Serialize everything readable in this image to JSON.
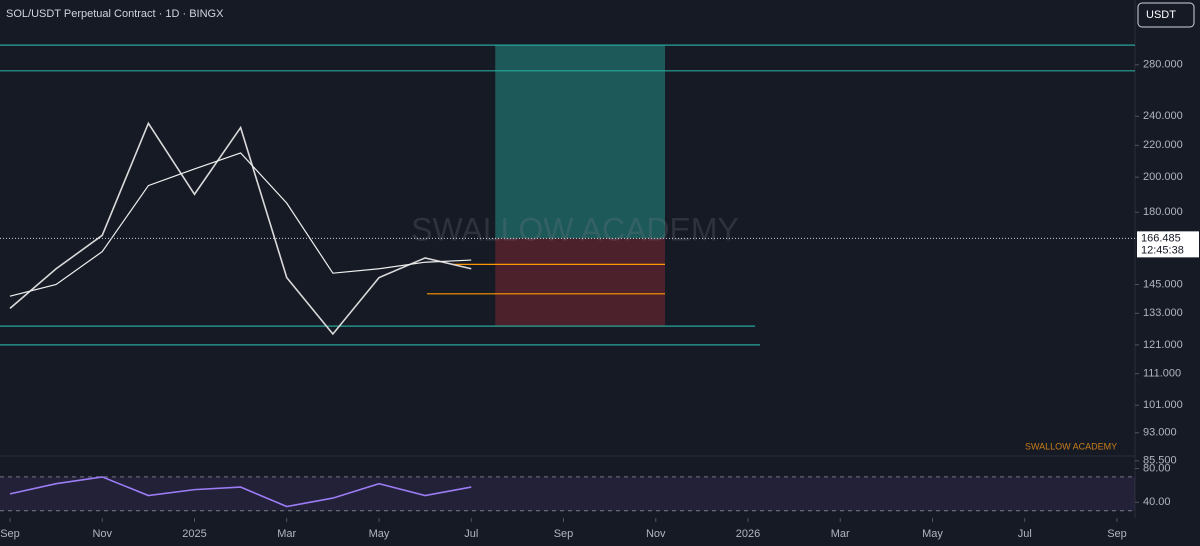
{
  "header": {
    "title": "SOL/USDT Perpetual Contract · 1D · BINGX",
    "currency": "USDT"
  },
  "chart_data": [
    {
      "type": "line",
      "log_scale": true,
      "grid": false,
      "x": [
        "2024-09",
        "2024-10",
        "2024-11",
        "2024-12",
        "2025-01",
        "2025-02",
        "2025-03",
        "2025-04",
        "2025-05",
        "2025-06",
        "2025-07"
      ],
      "series": [
        {
          "color": "#d9d9d9",
          "values": [
            135,
            152,
            168,
            235,
            190,
            232,
            148,
            125,
            148,
            157,
            152
          ]
        },
        {
          "color": "#f0f0f0",
          "values": [
            140,
            145,
            160,
            195,
            205,
            215,
            185,
            150,
            152,
            155,
            156
          ]
        }
      ],
      "last_price": {
        "value": 166.485,
        "label": "166.485"
      },
      "countdown": "12:45:38",
      "levels": [
        {
          "value": 297,
          "color": "#26a69a"
        },
        {
          "value": 275,
          "color": "#26a69a"
        },
        {
          "value": 128,
          "color": "#26a69a"
        },
        {
          "value": 121,
          "color": "#26a69a"
        },
        {
          "value": 154,
          "color": "#ff9800"
        },
        {
          "value": 141,
          "color": "#ff9800"
        }
      ],
      "position": {
        "entry": 166.485,
        "target": 297,
        "stop": 128
      },
      "ylim": [
        87,
        340
      ],
      "yticks": [
        {
          "value": 280,
          "label": "280.000"
        },
        {
          "value": 240,
          "label": "240.000"
        },
        {
          "value": 220,
          "label": "220.000"
        },
        {
          "value": 200,
          "label": "200.000"
        },
        {
          "value": 180,
          "label": "180.000"
        },
        {
          "value": 145,
          "label": "145.000"
        },
        {
          "value": 133,
          "label": "133.000"
        },
        {
          "value": 121,
          "label": "121.000"
        },
        {
          "value": 111,
          "label": "111.000"
        },
        {
          "value": 101,
          "label": "101.000"
        },
        {
          "value": 93,
          "label": "93.000"
        },
        {
          "value": 85.5,
          "label": "85.500"
        }
      ],
      "xlim": [
        "2024-09",
        "2026-09"
      ],
      "xticks": [
        {
          "value": "2024-09",
          "label": "Sep"
        },
        {
          "value": "2024-11",
          "label": "Nov"
        },
        {
          "value": "2025-01",
          "label": "2025"
        },
        {
          "value": "2025-03",
          "label": "Mar"
        },
        {
          "value": "2025-05",
          "label": "May"
        },
        {
          "value": "2025-07",
          "label": "Jul"
        },
        {
          "value": "2025-09",
          "label": "Sep"
        },
        {
          "value": "2025-11",
          "label": "Nov"
        },
        {
          "value": "2026-01",
          "label": "2026"
        },
        {
          "value": "2026-03",
          "label": "Mar"
        },
        {
          "value": "2026-05",
          "label": "May"
        },
        {
          "value": "2026-07",
          "label": "Jul"
        },
        {
          "value": "2026-09",
          "label": "Sep"
        }
      ],
      "annotations": [
        "SWALLOW ACADEMY",
        "SWALLOW ACADEMY"
      ]
    },
    {
      "type": "line",
      "x": [
        "2024-09",
        "2024-10",
        "2024-11",
        "2024-12",
        "2025-01",
        "2025-02",
        "2025-03",
        "2025-04",
        "2025-05",
        "2025-06",
        "2025-07"
      ],
      "series": [
        {
          "color": "#9c7cf4",
          "values": [
            50,
            62,
            70,
            48,
            55,
            58,
            35,
            45,
            62,
            48,
            58
          ]
        }
      ],
      "band": [
        30,
        70
      ],
      "ylim": [
        25,
        90
      ],
      "yticks": [
        {
          "value": 80,
          "label": "80.00"
        },
        {
          "value": 40,
          "label": "40.00"
        }
      ]
    }
  ]
}
